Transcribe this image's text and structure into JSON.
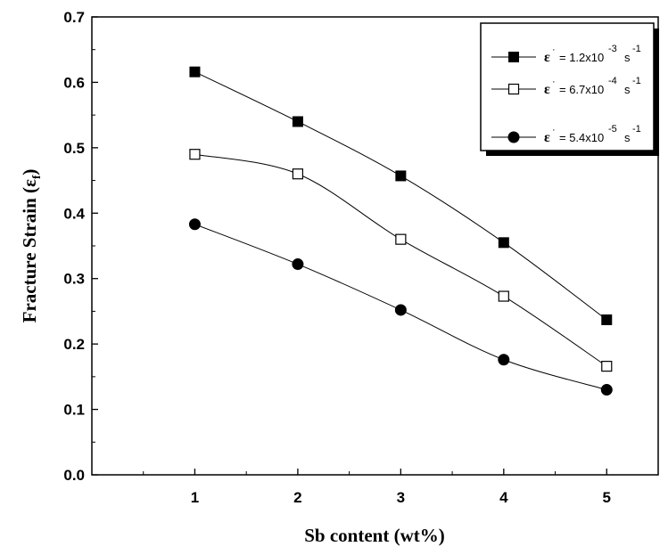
{
  "chart_data": {
    "type": "line",
    "xlabel": "Sb content (wt%)",
    "ylabel": "Fracture Strain (εf)",
    "ylabel_main": "Fracture Strain (ε",
    "ylabel_sub": "f",
    "ylabel_close": ")",
    "xlim": [
      0.0,
      5.5
    ],
    "ylim": [
      0.0,
      0.7
    ],
    "x_ticks": [
      1,
      2,
      3,
      4,
      5
    ],
    "x_tick_labels": [
      "1",
      "2",
      "3",
      "4",
      "5"
    ],
    "y_ticks": [
      0.0,
      0.1,
      0.2,
      0.3,
      0.4,
      0.5,
      0.6,
      0.7
    ],
    "y_tick_labels": [
      "0.0",
      "0.1",
      "0.2",
      "0.3",
      "0.4",
      "0.5",
      "0.6",
      "0.7"
    ],
    "grid": false,
    "legend_position": "top-right",
    "x": [
      1,
      2,
      3,
      4,
      5
    ],
    "series": [
      {
        "name": "ε = 1.2x10-3 s-1",
        "label_parts": {
          "symbol": "ε",
          "dot": "·",
          "eq": "= 1.2x10",
          "exp1": "-3",
          "unit": "s",
          "exp2": "-1"
        },
        "marker": "filled-square",
        "values": [
          0.616,
          0.54,
          0.457,
          0.355,
          0.237
        ]
      },
      {
        "name": "ε = 6.7x10-4 s-1",
        "label_parts": {
          "symbol": "ε",
          "dot": "·",
          "eq": "= 6.7x10",
          "exp1": "-4",
          "unit": "s",
          "exp2": "-1"
        },
        "marker": "open-square",
        "values": [
          0.49,
          0.46,
          0.36,
          0.273,
          0.166
        ]
      },
      {
        "name": "ε = 5.4x10-5 s-1",
        "label_parts": {
          "symbol": "ε",
          "dot": "·",
          "eq": "= 5.4x10",
          "exp1": "-5",
          "unit": "s",
          "exp2": "-1"
        },
        "marker": "filled-circle",
        "values": [
          0.383,
          0.322,
          0.252,
          0.176,
          0.13
        ]
      }
    ],
    "colors": {
      "line": "#000000",
      "marker_fill": "#000000",
      "background": "#ffffff"
    }
  }
}
